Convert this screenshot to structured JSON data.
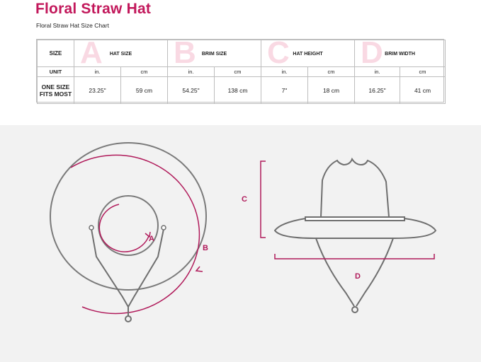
{
  "title": "Floral Straw Hat",
  "subtitle": "Floral Straw Hat Size Chart",
  "table": {
    "size_label": "SIZE",
    "unit_label": "UNIT",
    "size_value_line1": "ONE SIZE",
    "size_value_line2": "FITS MOST",
    "columns": [
      {
        "letter": "A",
        "label": "HAT SIZE",
        "unit_in": "in.",
        "unit_cm": "cm",
        "value_in": "23.25\"",
        "value_cm": "59 cm"
      },
      {
        "letter": "B",
        "label": "BRIM SIZE",
        "unit_in": "in.",
        "unit_cm": "cm",
        "value_in": "54.25\"",
        "value_cm": "138 cm"
      },
      {
        "letter": "C",
        "label": "HAT HEIGHT",
        "unit_in": "in.",
        "unit_cm": "cm",
        "value_in": "7\"",
        "value_cm": "18 cm"
      },
      {
        "letter": "D",
        "label": "BRIM WIDTH",
        "unit_in": "in.",
        "unit_cm": "cm",
        "value_in": "16.25\"",
        "value_cm": "41 cm"
      }
    ]
  },
  "diagram": {
    "label_a": "A",
    "label_b": "B",
    "label_c": "C",
    "label_d": "D",
    "accent_color": "#b01a5a",
    "outline_color": "#7a7a7a"
  }
}
